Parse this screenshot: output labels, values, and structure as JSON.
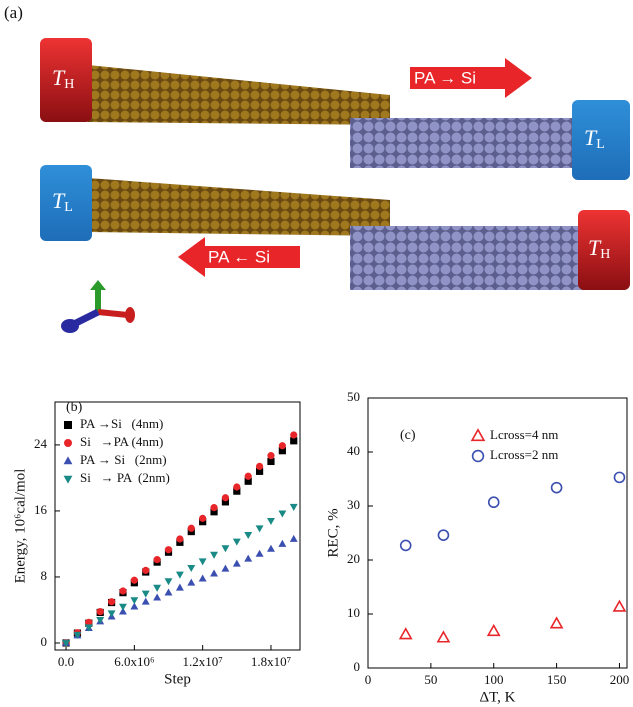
{
  "illustration": {
    "label": "(a)",
    "blocks": [
      {
        "symbol": "T",
        "subscript": "H"
      },
      {
        "symbol": "T",
        "subscript": "L"
      },
      {
        "symbol": "T",
        "subscript": "L"
      },
      {
        "symbol": "T",
        "subscript": "H"
      }
    ],
    "arrows": [
      "PA → Si",
      "PA ← Si"
    ]
  },
  "chart_data": [
    {
      "type": "scatter",
      "panel_label": "(b)",
      "x_label": "Step",
      "y_label": "Energy, 10⁶cal/mol",
      "x": [
        0,
        1000000,
        2000000,
        3000000,
        4000000,
        5000000,
        6000000,
        7000000,
        8000000,
        9000000,
        10000000,
        11000000,
        12000000,
        13000000,
        14000000,
        15000000,
        16000000,
        17000000,
        18000000,
        19000000,
        20000000
      ],
      "series": [
        {
          "name": "PA →Si   (4nm)",
          "color": "#000000",
          "marker": "square",
          "values": [
            0,
            1.2,
            2.4,
            3.7,
            4.9,
            6.1,
            7.3,
            8.6,
            9.8,
            11.0,
            12.2,
            13.5,
            14.7,
            15.9,
            17.1,
            18.4,
            19.6,
            20.8,
            22.0,
            23.3,
            24.5
          ]
        },
        {
          "name": "Si   →PA (4nm)",
          "color": "#e8262a",
          "marker": "circle",
          "values": [
            0,
            1.25,
            2.5,
            3.8,
            5.0,
            6.3,
            7.6,
            8.8,
            10.1,
            11.3,
            12.6,
            13.9,
            15.1,
            16.4,
            17.6,
            18.9,
            20.2,
            21.4,
            22.7,
            23.9,
            25.2
          ]
        },
        {
          "name": "PA → Si   (2nm)",
          "color": "#3a4fb0",
          "marker": "triangle-up",
          "values": [
            0,
            0.9,
            1.8,
            2.6,
            3.2,
            3.8,
            4.4,
            5.0,
            5.5,
            6.1,
            6.7,
            7.3,
            7.8,
            8.4,
            9.0,
            9.6,
            10.2,
            10.8,
            11.4,
            12.0,
            12.6
          ]
        },
        {
          "name": "Si   → PA  (2nm)",
          "color": "#1a8a86",
          "marker": "triangle-down",
          "values": [
            0,
            1.0,
            1.9,
            2.8,
            3.6,
            4.4,
            5.2,
            6.0,
            6.7,
            7.5,
            8.3,
            9.1,
            9.9,
            10.7,
            11.5,
            12.3,
            13.1,
            13.9,
            14.8,
            15.7,
            16.5
          ]
        }
      ],
      "xlim": [
        -970000,
        20550000
      ],
      "xticks": [
        {
          "value": 0,
          "label": "0.0"
        },
        {
          "value": 6000000,
          "label": "6.0x10⁶"
        },
        {
          "value": 12000000,
          "label": "1.2x10⁷"
        },
        {
          "value": 18000000,
          "label": "1.8x10⁷"
        }
      ],
      "ylim": [
        -0.85,
        29.2
      ],
      "yticks": [
        0,
        8,
        16,
        24
      ],
      "hollow": false
    },
    {
      "type": "scatter",
      "panel_label": "(c)",
      "x_label": "ΔT, K",
      "y_label": "REC, %",
      "x": [
        30,
        60,
        100,
        150,
        200
      ],
      "series": [
        {
          "name": "Lcross=4 nm",
          "color": "#e8262a",
          "marker": "triangle-up",
          "values": [
            6.2,
            5.6,
            6.8,
            8.2,
            11.3
          ]
        },
        {
          "name": "Lcross=2 nm",
          "color": "#3a4fb0",
          "marker": "circle",
          "values": [
            22.7,
            24.6,
            30.7,
            33.4,
            35.3
          ]
        }
      ],
      "xlim": [
        0,
        206
      ],
      "xticks": [
        0,
        50,
        100,
        150,
        200
      ],
      "ylim": [
        0,
        50
      ],
      "yticks": [
        0,
        10,
        20,
        30,
        40,
        50
      ],
      "hollow": true
    }
  ]
}
